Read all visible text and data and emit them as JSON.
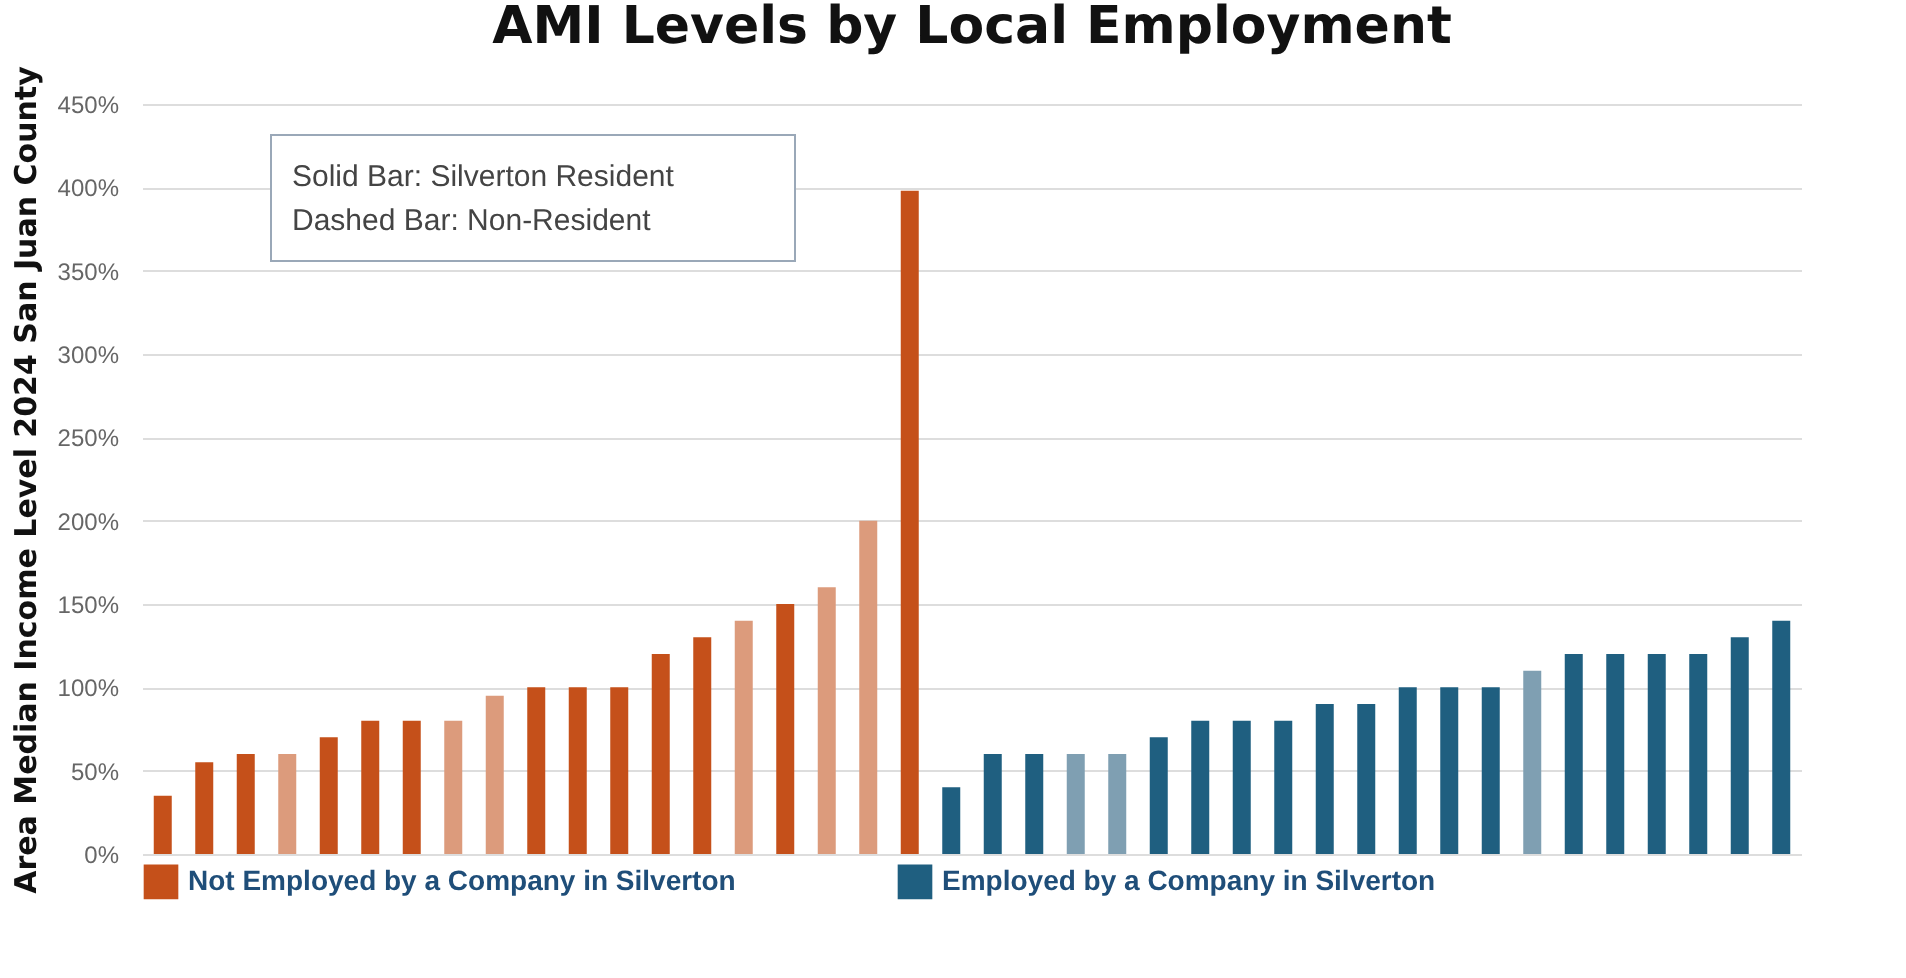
{
  "chart_data": {
    "type": "bar",
    "title": "AMI Levels by Local Employment",
    "ylabel": "Area Median Income Level 2024 San Juan County",
    "categories": [
      null,
      null,
      null,
      null,
      null,
      null,
      null,
      null,
      null,
      null,
      null,
      null,
      null,
      null,
      null,
      null,
      null,
      null,
      null,
      null,
      null,
      null,
      null,
      null,
      null,
      null,
      null,
      null,
      null,
      null,
      null,
      null,
      null,
      null,
      null,
      null,
      null,
      null,
      null,
      null
    ],
    "series": [
      {
        "name": "Not Employed by a Company in Silverton",
        "color": "#c5501a",
        "colors": [
          "#c5501a",
          "#c5501a",
          "#c5501a",
          "#dc9b7c",
          "#c5501a",
          "#c5501a",
          "#c5501a",
          "#dc9b7c",
          "#dc9b7c",
          "#c5501a",
          "#c5501a",
          "#c5501a",
          "#c5501a",
          "#c5501a",
          "#dc9b7c",
          "#c5501a",
          "#dc9b7c",
          "#dc9b7c",
          "#c5501a",
          null,
          null,
          null,
          null,
          null,
          null,
          null,
          null,
          null,
          null,
          null,
          null,
          null,
          null,
          null,
          null,
          null,
          null,
          null,
          null,
          null
        ],
        "values": [
          35,
          55,
          60,
          60,
          70,
          80,
          80,
          80,
          95,
          100,
          100,
          100,
          120,
          130,
          140,
          150,
          160,
          200,
          398,
          null,
          null,
          null,
          null,
          null,
          null,
          null,
          null,
          null,
          null,
          null,
          null,
          null,
          null,
          null,
          null,
          null,
          null,
          null,
          null,
          null
        ]
      },
      {
        "name": "Employed by a Company in Silverton",
        "color": "#1f5f80",
        "colors": [
          null,
          null,
          null,
          null,
          null,
          null,
          null,
          null,
          null,
          null,
          null,
          null,
          null,
          null,
          null,
          null,
          null,
          null,
          null,
          "#1f5f80",
          "#1f5f80",
          "#1f5f80",
          "#7f9fb2",
          "#7f9fb2",
          "#1f5f80",
          "#1f5f80",
          "#1f5f80",
          "#1f5f80",
          "#1f5f80",
          "#1f5f80",
          "#1f5f80",
          "#1f5f80",
          "#1f5f80",
          "#7f9fb2",
          "#1f5f80",
          "#1f5f80",
          "#1f5f80",
          "#1f5f80",
          "#1f5f80",
          "#1f5f80"
        ],
        "values": [
          null,
          null,
          null,
          null,
          null,
          null,
          null,
          null,
          null,
          null,
          null,
          null,
          null,
          null,
          null,
          null,
          null,
          null,
          null,
          40,
          60,
          60,
          60,
          60,
          70,
          80,
          80,
          80,
          90,
          90,
          100,
          100,
          100,
          110,
          120,
          120,
          120,
          120,
          130,
          140
        ]
      }
    ],
    "ylim": [
      0,
      450
    ],
    "yticks": [
      {
        "value": 0,
        "label": "0%"
      },
      {
        "value": 50,
        "label": "50%"
      },
      {
        "value": 100,
        "label": "100%"
      },
      {
        "value": 150,
        "label": "150%"
      },
      {
        "value": 200,
        "label": "200%"
      },
      {
        "value": 250,
        "label": "250%"
      },
      {
        "value": 300,
        "label": "300%"
      },
      {
        "value": 350,
        "label": "350%"
      },
      {
        "value": 400,
        "label": "400%"
      },
      {
        "value": 450,
        "label": "450%"
      }
    ],
    "grid": "y",
    "legend": "bottom",
    "annotations": [
      "Solid Bar: Silverton Resident",
      "Dashed Bar: Non-Resident"
    ]
  }
}
